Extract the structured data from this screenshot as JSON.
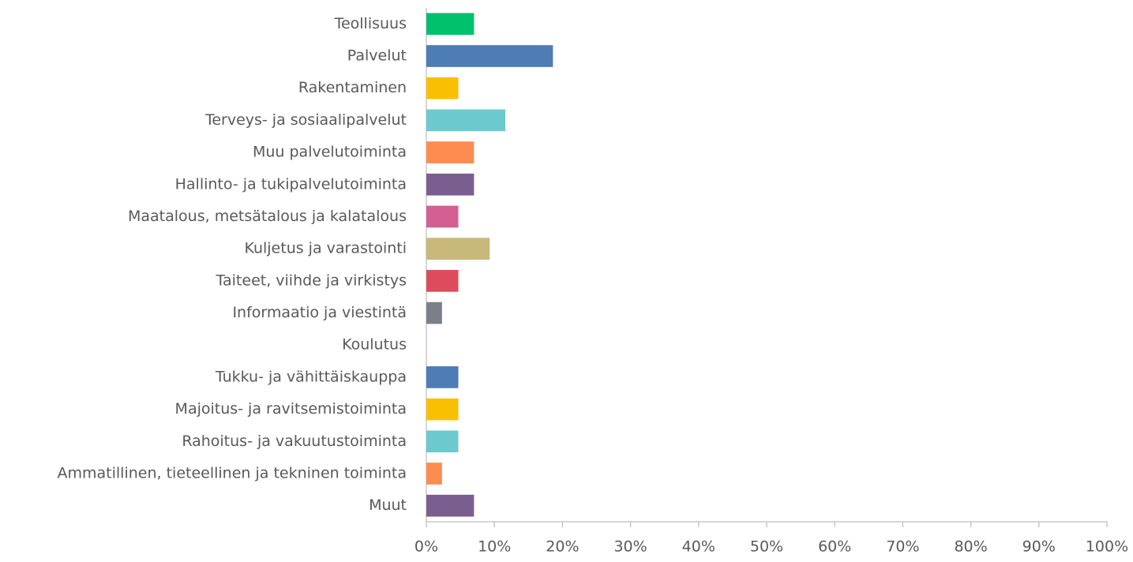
{
  "chart_data": {
    "type": "barh",
    "categories": [
      "Teollisuus",
      "Palvelut",
      "Rakentaminen",
      "Terveys- ja sosiaalipalvelut",
      "Muu palvelutoiminta",
      "Hallinto- ja tukipalvelutoiminta",
      "Maatalous, metsätalous ja kalatalous",
      "Kuljetus ja varastointi",
      "Taiteet, viihde ja virkistys",
      "Informaatio ja viestintä",
      "Koulutus",
      "Tukku- ja vähittäiskauppa",
      "Majoitus- ja ravitsemistoiminta",
      "Rahoitus- ja vakuutustoiminta",
      "Ammatillinen, tieteellinen ja tekninen toiminta",
      "Muut"
    ],
    "values": [
      7.0,
      18.6,
      4.7,
      11.6,
      7.0,
      7.0,
      4.7,
      9.3,
      4.7,
      2.3,
      0,
      4.7,
      4.7,
      4.7,
      2.3,
      7.0
    ],
    "colors": [
      "#00c06e",
      "#4e7cb5",
      "#f8c000",
      "#6cc9cd",
      "#ff8c4f",
      "#7a5e8f",
      "#d45f91",
      "#c8b87a",
      "#dd4c5c",
      "#7b8088",
      "#999999",
      "#4e7cb5",
      "#f8c000",
      "#6cc9cd",
      "#ff8c4f",
      "#7a5e8f"
    ],
    "xlim": [
      0,
      100
    ],
    "xticks": [
      {
        "value": 0,
        "label": "0%"
      },
      {
        "value": 10,
        "label": "10%"
      },
      {
        "value": 20,
        "label": "20%"
      },
      {
        "value": 30,
        "label": "30%"
      },
      {
        "value": 40,
        "label": "40%"
      },
      {
        "value": 50,
        "label": "50%"
      },
      {
        "value": 60,
        "label": "60%"
      },
      {
        "value": 70,
        "label": "70%"
      },
      {
        "value": 80,
        "label": "80%"
      },
      {
        "value": 90,
        "label": "90%"
      },
      {
        "value": 100,
        "label": "100%"
      }
    ],
    "grid": false
  }
}
